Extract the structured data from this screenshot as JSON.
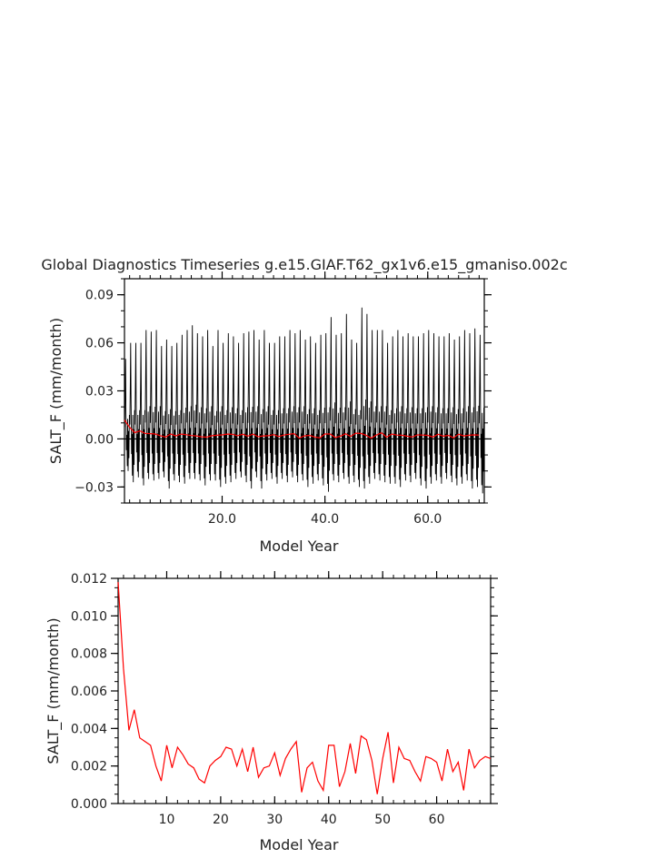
{
  "title": "Global Diagnostics Timeseries g.e15.GIAF.T62_gx1v6.e15_gmaniso.002c",
  "colors": {
    "monthly": "#000000",
    "annual": "#ff0000",
    "axis": "#000000"
  },
  "chart_data": [
    {
      "type": "line",
      "xlabel": "Model Year",
      "ylabel": "SALT_F (mm/month)",
      "xlim": [
        1,
        71
      ],
      "ylim": [
        -0.04,
        0.1
      ],
      "xticks": [
        20,
        40,
        60
      ],
      "xtick_labels": [
        "20.0",
        "40.0",
        "60.0"
      ],
      "yticks": [
        -0.03,
        0,
        0.03,
        0.06,
        0.09
      ],
      "ytick_labels": [
        "−0.03",
        "0.00",
        "0.03",
        "0.06",
        "0.09"
      ],
      "zero_line": true,
      "series": [
        {
          "color": "#000000",
          "x_start": 1.04,
          "x_step": 0.0833,
          "yearly_max": [
            0.05,
            0.06,
            0.06,
            0.06,
            0.068,
            0.067,
            0.068,
            0.058,
            0.062,
            0.058,
            0.06,
            0.065,
            0.068,
            0.071,
            0.066,
            0.064,
            0.068,
            0.058,
            0.068,
            0.06,
            0.066,
            0.064,
            0.06,
            0.066,
            0.067,
            0.068,
            0.062,
            0.068,
            0.06,
            0.06,
            0.064,
            0.064,
            0.068,
            0.066,
            0.068,
            0.062,
            0.064,
            0.06,
            0.065,
            0.066,
            0.076,
            0.065,
            0.066,
            0.078,
            0.062,
            0.06,
            0.082,
            0.078,
            0.068,
            0.068,
            0.068,
            0.06,
            0.064,
            0.068,
            0.064,
            0.066,
            0.064,
            0.064,
            0.066,
            0.068,
            0.066,
            0.064,
            0.064,
            0.066,
            0.062,
            0.064,
            0.068,
            0.066,
            0.069,
            0.065,
            0.062
          ],
          "yearly_min": [
            -0.02,
            -0.027,
            -0.024,
            -0.029,
            -0.025,
            -0.026,
            -0.025,
            -0.024,
            -0.031,
            -0.026,
            -0.027,
            -0.028,
            -0.025,
            -0.025,
            -0.026,
            -0.029,
            -0.026,
            -0.026,
            -0.03,
            -0.028,
            -0.027,
            -0.025,
            -0.024,
            -0.027,
            -0.031,
            -0.024,
            -0.031,
            -0.026,
            -0.025,
            -0.028,
            -0.025,
            -0.027,
            -0.024,
            -0.027,
            -0.026,
            -0.03,
            -0.028,
            -0.026,
            -0.029,
            -0.033,
            -0.026,
            -0.027,
            -0.025,
            -0.028,
            -0.027,
            -0.03,
            -0.031,
            -0.028,
            -0.025,
            -0.026,
            -0.027,
            -0.028,
            -0.028,
            -0.03,
            -0.026,
            -0.027,
            -0.025,
            -0.029,
            -0.031,
            -0.028,
            -0.026,
            -0.028,
            -0.025,
            -0.027,
            -0.029,
            -0.028,
            -0.026,
            -0.031,
            -0.03,
            -0.034,
            -0.035
          ]
        },
        {
          "color": "#ff0000",
          "x": [
            1,
            2,
            3,
            4,
            5,
            6,
            7,
            8,
            9,
            10,
            11,
            12,
            13,
            14,
            15,
            16,
            17,
            18,
            19,
            20,
            21,
            22,
            23,
            24,
            25,
            26,
            27,
            28,
            29,
            30,
            31,
            32,
            33,
            34,
            35,
            36,
            37,
            38,
            39,
            40,
            41,
            42,
            43,
            44,
            45,
            46,
            47,
            48,
            49,
            50,
            51,
            52,
            53,
            54,
            55,
            56,
            57,
            58,
            59,
            60,
            61,
            62,
            63,
            64,
            65,
            66,
            67,
            68,
            69,
            70
          ],
          "values": [
            0.0118,
            0.0072,
            0.0039,
            0.005,
            0.0035,
            0.0033,
            0.0031,
            0.002,
            0.0012,
            0.0031,
            0.0019,
            0.003,
            0.0026,
            0.0021,
            0.0019,
            0.0013,
            0.0011,
            0.002,
            0.0023,
            0.0025,
            0.003,
            0.0029,
            0.002,
            0.0029,
            0.0017,
            0.003,
            0.0014,
            0.0019,
            0.002,
            0.0027,
            0.0015,
            0.0024,
            0.0029,
            0.0033,
            0.0006,
            0.0019,
            0.0022,
            0.0012,
            0.0007,
            0.0031,
            0.0031,
            0.0009,
            0.0017,
            0.0032,
            0.0016,
            0.0036,
            0.0034,
            0.0023,
            0.0005,
            0.0024,
            0.0038,
            0.0011,
            0.003,
            0.0024,
            0.0023,
            0.0017,
            0.0012,
            0.0025,
            0.0024,
            0.0022,
            0.0012,
            0.0029,
            0.0017,
            0.0022,
            0.0007,
            0.0029,
            0.0019,
            0.0023,
            0.0025,
            0.0024
          ]
        }
      ]
    },
    {
      "type": "line",
      "xlabel": "Model Year",
      "ylabel": "SALT_F (mm/month)",
      "xlim": [
        1,
        70
      ],
      "ylim": [
        0,
        0.012
      ],
      "xticks": [
        10,
        20,
        30,
        40,
        50,
        60
      ],
      "xtick_labels": [
        "10",
        "20",
        "30",
        "40",
        "50",
        "60"
      ],
      "yticks": [
        0,
        0.002,
        0.004,
        0.006,
        0.008,
        0.01,
        0.012
      ],
      "ytick_labels": [
        "0.000",
        "0.002",
        "0.004",
        "0.006",
        "0.008",
        "0.010",
        "0.012"
      ],
      "series": [
        {
          "color": "#ff0000",
          "x": [
            1,
            2,
            3,
            4,
            5,
            6,
            7,
            8,
            9,
            10,
            11,
            12,
            13,
            14,
            15,
            16,
            17,
            18,
            19,
            20,
            21,
            22,
            23,
            24,
            25,
            26,
            27,
            28,
            29,
            30,
            31,
            32,
            33,
            34,
            35,
            36,
            37,
            38,
            39,
            40,
            41,
            42,
            43,
            44,
            45,
            46,
            47,
            48,
            49,
            50,
            51,
            52,
            53,
            54,
            55,
            56,
            57,
            58,
            59,
            60,
            61,
            62,
            63,
            64,
            65,
            66,
            67,
            68,
            69,
            70
          ],
          "values": [
            0.0118,
            0.0072,
            0.0039,
            0.005,
            0.0035,
            0.0033,
            0.0031,
            0.002,
            0.0012,
            0.0031,
            0.0019,
            0.003,
            0.0026,
            0.0021,
            0.0019,
            0.0013,
            0.0011,
            0.002,
            0.0023,
            0.0025,
            0.003,
            0.0029,
            0.002,
            0.0029,
            0.0017,
            0.003,
            0.0014,
            0.0019,
            0.002,
            0.0027,
            0.0015,
            0.0024,
            0.0029,
            0.0033,
            0.0006,
            0.0019,
            0.0022,
            0.0012,
            0.0007,
            0.0031,
            0.0031,
            0.0009,
            0.0017,
            0.0032,
            0.0016,
            0.0036,
            0.0034,
            0.0023,
            0.0005,
            0.0024,
            0.0038,
            0.0011,
            0.003,
            0.0024,
            0.0023,
            0.0017,
            0.0012,
            0.0025,
            0.0024,
            0.0022,
            0.0012,
            0.0029,
            0.0017,
            0.0022,
            0.0007,
            0.0029,
            0.0019,
            0.0023,
            0.0025,
            0.0024
          ]
        }
      ]
    }
  ]
}
